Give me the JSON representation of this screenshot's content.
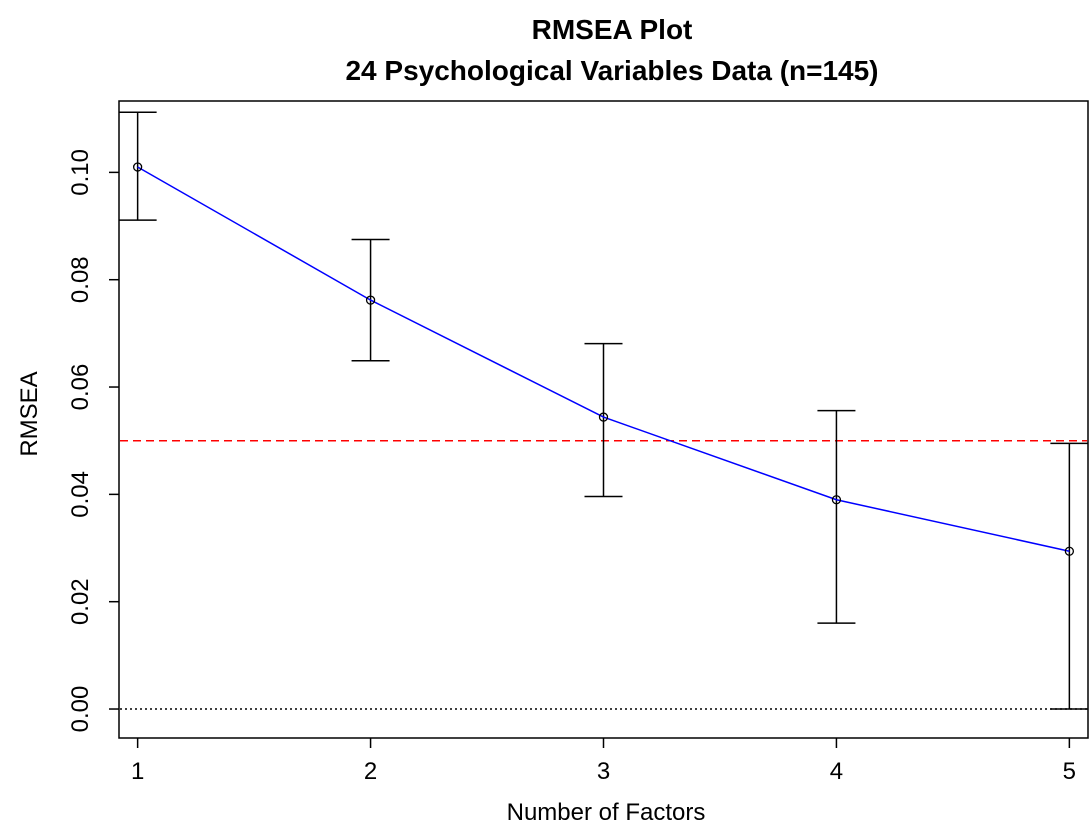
{
  "chart_data": {
    "type": "line",
    "title": "RMSEA Plot",
    "subtitle": "24 Psychological Variables Data (n=145)",
    "xlabel": "Number of Factors",
    "ylabel": "RMSEA",
    "x": [
      1,
      2,
      3,
      4,
      5
    ],
    "x_ticks": [
      "1",
      "2",
      "3",
      "4",
      "5"
    ],
    "y_ticks": [
      "0.00",
      "0.02",
      "0.04",
      "0.06",
      "0.08",
      "0.10"
    ],
    "xlim": [
      0.92,
      5.08
    ],
    "ylim": [
      -0.0054,
      0.1133
    ],
    "series": [
      {
        "values": [
          0.101,
          0.0762,
          0.0544,
          0.039,
          0.0294
        ],
        "lower": [
          0.0911,
          0.0649,
          0.0396,
          0.016,
          0.0
        ],
        "upper": [
          0.1112,
          0.0875,
          0.0681,
          0.0556,
          0.0495
        ],
        "color": "#0000ff"
      }
    ],
    "reference_lines": [
      {
        "y": 0.05,
        "color": "#ff0000",
        "style": "dashed"
      },
      {
        "y": 0.0,
        "color": "#000000",
        "style": "dotted"
      }
    ],
    "grid": false
  }
}
